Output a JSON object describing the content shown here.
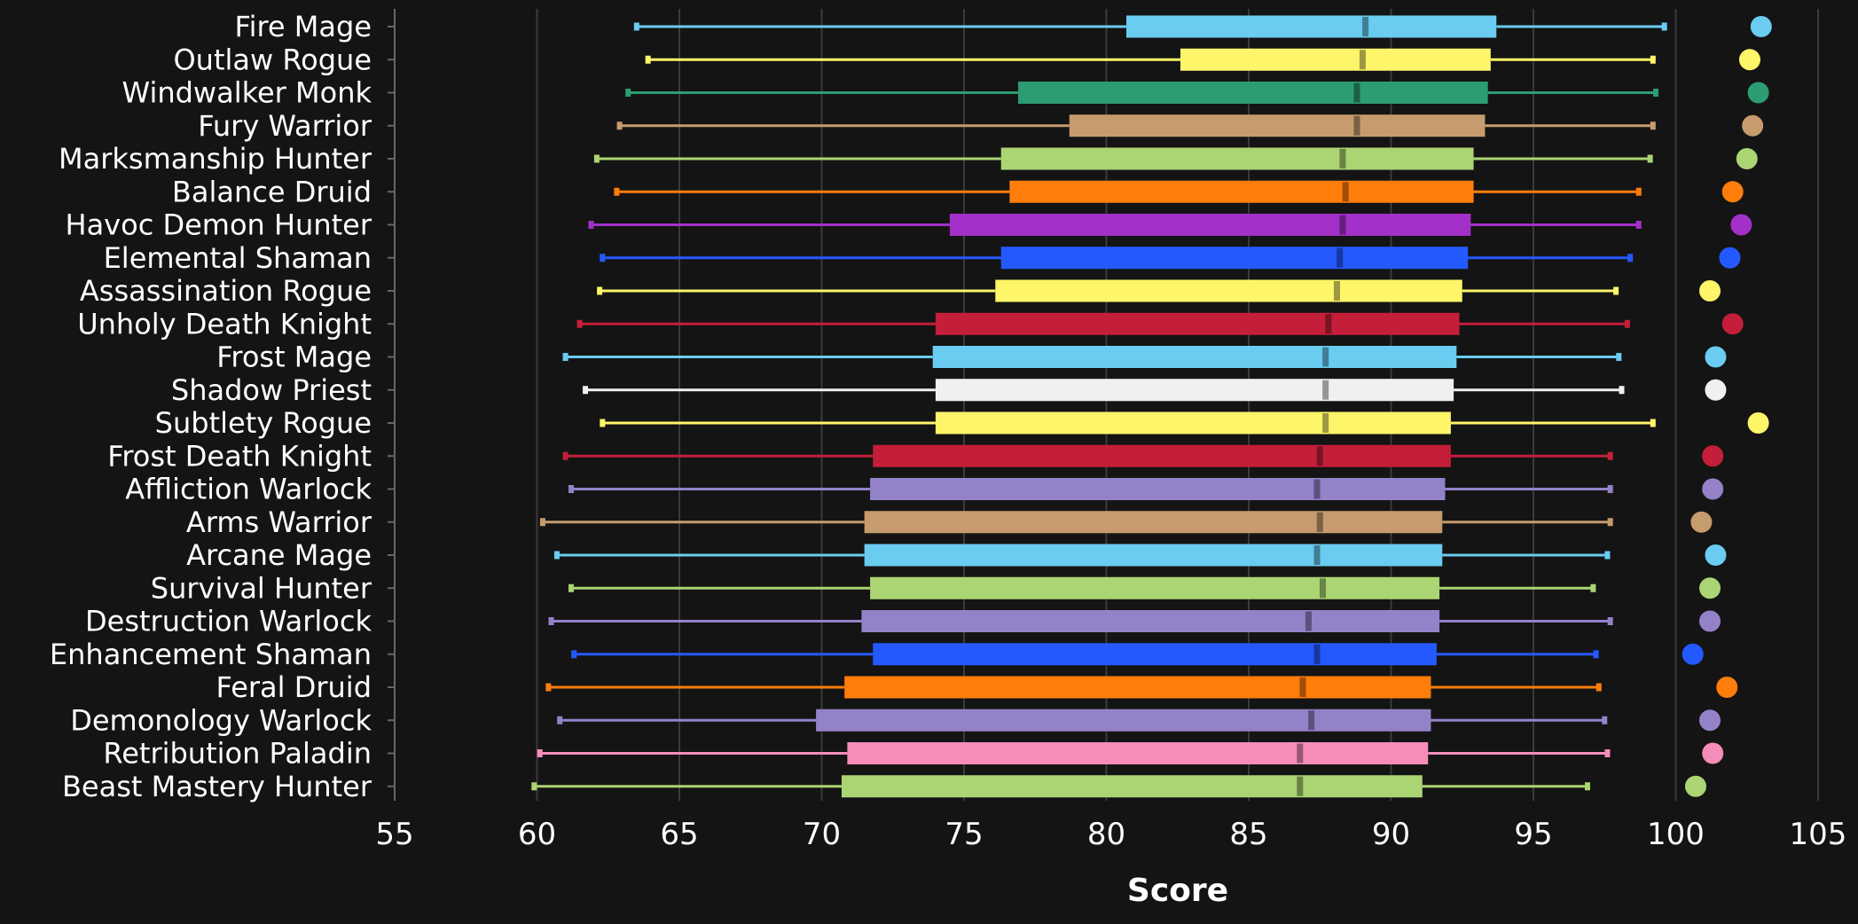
{
  "chart_data": {
    "type": "boxplot",
    "title": "",
    "xlabel": "Score",
    "ylabel": "",
    "xlim": [
      55,
      105
    ],
    "xticks": [
      55,
      60,
      65,
      70,
      75,
      80,
      85,
      90,
      95,
      100,
      105
    ],
    "grid": "vertical",
    "legend": "none",
    "categories": [
      {
        "name": "Fire Mage",
        "color": "#69ccf0",
        "min": 63.5,
        "q1": 80.7,
        "median": 89.1,
        "q3": 93.7,
        "max": 99.6,
        "dot": 103.0
      },
      {
        "name": "Outlaw Rogue",
        "color": "#fff569",
        "min": 63.9,
        "q1": 82.6,
        "median": 89.0,
        "q3": 93.5,
        "max": 99.2,
        "dot": 102.6
      },
      {
        "name": "Windwalker Monk",
        "color": "#2c9d72",
        "min": 63.2,
        "q1": 76.9,
        "median": 88.8,
        "q3": 93.4,
        "max": 99.3,
        "dot": 102.9
      },
      {
        "name": "Fury Warrior",
        "color": "#c69b6d",
        "min": 62.9,
        "q1": 78.7,
        "median": 88.8,
        "q3": 93.3,
        "max": 99.2,
        "dot": 102.7
      },
      {
        "name": "Marksmanship Hunter",
        "color": "#abd473",
        "min": 62.1,
        "q1": 76.3,
        "median": 88.3,
        "q3": 92.9,
        "max": 99.1,
        "dot": 102.5
      },
      {
        "name": "Balance Druid",
        "color": "#ff7d0a",
        "min": 62.8,
        "q1": 76.6,
        "median": 88.4,
        "q3": 92.9,
        "max": 98.7,
        "dot": 102.0
      },
      {
        "name": "Havoc Demon Hunter",
        "color": "#a330c9",
        "min": 61.9,
        "q1": 74.5,
        "median": 88.3,
        "q3": 92.8,
        "max": 98.7,
        "dot": 102.3
      },
      {
        "name": "Elemental Shaman",
        "color": "#2459ff",
        "min": 62.3,
        "q1": 76.3,
        "median": 88.2,
        "q3": 92.7,
        "max": 98.4,
        "dot": 101.9
      },
      {
        "name": "Assassination Rogue",
        "color": "#fff569",
        "min": 62.2,
        "q1": 76.1,
        "median": 88.1,
        "q3": 92.5,
        "max": 97.9,
        "dot": 101.2
      },
      {
        "name": "Unholy Death Knight",
        "color": "#c41e3a",
        "min": 61.5,
        "q1": 74.0,
        "median": 87.8,
        "q3": 92.4,
        "max": 98.3,
        "dot": 102.0
      },
      {
        "name": "Frost Mage",
        "color": "#69ccf0",
        "min": 61.0,
        "q1": 73.9,
        "median": 87.7,
        "q3": 92.3,
        "max": 98.0,
        "dot": 101.4
      },
      {
        "name": "Shadow Priest",
        "color": "#f0f0f0",
        "min": 61.7,
        "q1": 74.0,
        "median": 87.7,
        "q3": 92.2,
        "max": 98.1,
        "dot": 101.4
      },
      {
        "name": "Subtlety Rogue",
        "color": "#fff569",
        "min": 62.3,
        "q1": 74.0,
        "median": 87.7,
        "q3": 92.1,
        "max": 99.2,
        "dot": 102.9
      },
      {
        "name": "Frost Death Knight",
        "color": "#c41e3a",
        "min": 61.0,
        "q1": 71.8,
        "median": 87.5,
        "q3": 92.1,
        "max": 97.7,
        "dot": 101.3
      },
      {
        "name": "Affliction Warlock",
        "color": "#9482c9",
        "min": 61.2,
        "q1": 71.7,
        "median": 87.4,
        "q3": 91.9,
        "max": 97.7,
        "dot": 101.3
      },
      {
        "name": "Arms Warrior",
        "color": "#c69b6d",
        "min": 60.2,
        "q1": 71.5,
        "median": 87.5,
        "q3": 91.8,
        "max": 97.7,
        "dot": 100.9
      },
      {
        "name": "Arcane Mage",
        "color": "#69ccf0",
        "min": 60.7,
        "q1": 71.5,
        "median": 87.4,
        "q3": 91.8,
        "max": 97.6,
        "dot": 101.4
      },
      {
        "name": "Survival Hunter",
        "color": "#abd473",
        "min": 61.2,
        "q1": 71.7,
        "median": 87.6,
        "q3": 91.7,
        "max": 97.1,
        "dot": 101.2
      },
      {
        "name": "Destruction Warlock",
        "color": "#9482c9",
        "min": 60.5,
        "q1": 71.4,
        "median": 87.1,
        "q3": 91.7,
        "max": 97.7,
        "dot": 101.2
      },
      {
        "name": "Enhancement Shaman",
        "color": "#2459ff",
        "min": 61.3,
        "q1": 71.8,
        "median": 87.4,
        "q3": 91.6,
        "max": 97.2,
        "dot": 100.6
      },
      {
        "name": "Feral Druid",
        "color": "#ff7d0a",
        "min": 60.4,
        "q1": 70.8,
        "median": 86.9,
        "q3": 91.4,
        "max": 97.3,
        "dot": 101.8
      },
      {
        "name": "Demonology Warlock",
        "color": "#9482c9",
        "min": 60.8,
        "q1": 69.8,
        "median": 87.2,
        "q3": 91.4,
        "max": 97.5,
        "dot": 101.2
      },
      {
        "name": "Retribution Paladin",
        "color": "#f58cba",
        "min": 60.1,
        "q1": 70.9,
        "median": 86.8,
        "q3": 91.3,
        "max": 97.6,
        "dot": 101.3
      },
      {
        "name": "Beast Mastery Hunter",
        "color": "#abd473",
        "min": 59.9,
        "q1": 70.7,
        "median": 86.8,
        "q3": 91.1,
        "max": 96.9,
        "dot": 100.7
      }
    ]
  }
}
